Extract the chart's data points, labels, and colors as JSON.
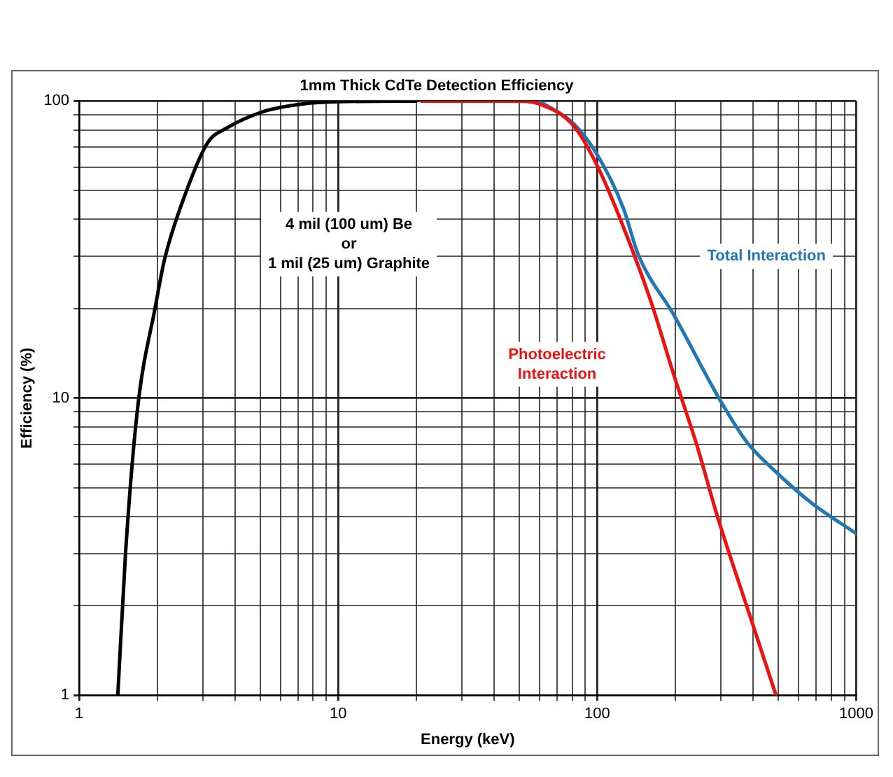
{
  "chart_data": {
    "type": "line",
    "title": "1mm Thick CdTe Detection Efficiency",
    "xlabel": "Energy (keV)",
    "ylabel": "Efficiency (%)",
    "log": "xy",
    "grid": true,
    "legend": false,
    "marker": "none",
    "line_style": "solid",
    "xlim": [
      1,
      1000
    ],
    "ylim": [
      1,
      100
    ],
    "xticks": [
      1,
      {
        "value": 2,
        "label": null
      },
      {
        "value": 3,
        "label": null
      },
      {
        "value": 4,
        "label": null
      },
      {
        "value": 5,
        "label": null
      },
      {
        "value": 6,
        "label": null
      },
      {
        "value": 7,
        "label": null
      },
      {
        "value": 8,
        "label": null
      },
      {
        "value": 9,
        "label": null
      },
      10,
      {
        "value": 20,
        "label": null
      },
      {
        "value": 30,
        "label": null
      },
      {
        "value": 40,
        "label": null
      },
      {
        "value": 50,
        "label": null
      },
      {
        "value": 60,
        "label": null
      },
      {
        "value": 70,
        "label": null
      },
      {
        "value": 80,
        "label": null
      },
      {
        "value": 90,
        "label": null
      },
      100,
      {
        "value": 200,
        "label": null
      },
      {
        "value": 300,
        "label": null
      },
      {
        "value": 400,
        "label": null
      },
      {
        "value": 500,
        "label": null
      },
      {
        "value": 600,
        "label": null
      },
      {
        "value": 700,
        "label": null
      },
      {
        "value": 800,
        "label": null
      },
      {
        "value": 900,
        "label": null
      },
      1000
    ],
    "yticks": [
      1,
      {
        "value": 2,
        "label": null
      },
      {
        "value": 3,
        "label": null
      },
      {
        "value": 4,
        "label": null
      },
      {
        "value": 5,
        "label": null
      },
      {
        "value": 6,
        "label": null
      },
      {
        "value": 7,
        "label": null
      },
      {
        "value": 8,
        "label": null
      },
      {
        "value": 9,
        "label": null
      },
      10,
      {
        "value": 20,
        "label": null
      },
      {
        "value": 30,
        "label": null
      },
      {
        "value": 40,
        "label": null
      },
      {
        "value": 50,
        "label": null
      },
      {
        "value": 60,
        "label": null
      },
      {
        "value": 70,
        "label": null
      },
      {
        "value": 80,
        "label": null
      },
      {
        "value": 90,
        "label": null
      },
      100
    ],
    "series": [
      {
        "name": "4 mil (100 um) Be\nor\n1 mil (25 um) Graphite",
        "color": "#000000",
        "x": [
          1.41,
          1.51,
          1.68,
          1.97,
          2.14,
          2.57,
          3.14,
          3.7,
          5.1,
          7.3,
          10,
          20
        ],
        "values": [
          1,
          3,
          9.2,
          20.4,
          29.5,
          48.7,
          72.6,
          81,
          92,
          97.8,
          99.5,
          100
        ]
      },
      {
        "name": "Total Interaction",
        "color": "#1f77b4",
        "x": [
          59.7,
          81,
          100,
          126,
          144,
          198,
          297,
          379,
          484,
          669,
          1000
        ],
        "values": [
          100,
          84,
          66,
          43.7,
          30.4,
          19,
          9.9,
          7.1,
          5.7,
          4.45,
          3.5
        ]
      },
      {
        "name": "Photoelectric\nInteraction",
        "color": "#ee1111",
        "x": [
          21,
          50,
          59.7,
          81,
          100,
          126,
          161,
          198,
          243,
          291,
          387,
          490
        ],
        "values": [
          100,
          100,
          97.8,
          82.6,
          60.6,
          37.8,
          21.2,
          11.9,
          6.9,
          4,
          1.87,
          1
        ]
      }
    ]
  }
}
